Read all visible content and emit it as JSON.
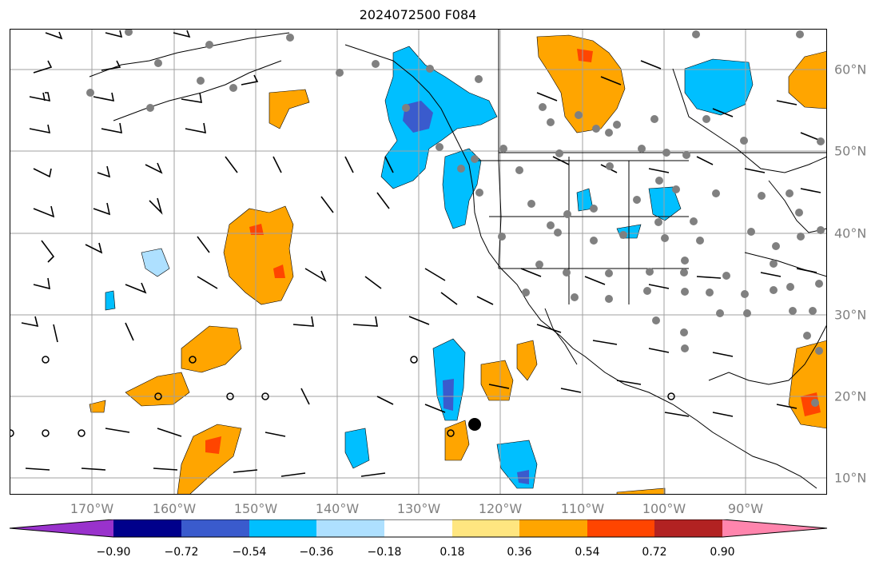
{
  "title": "2024072500 F084",
  "lon_labels": [
    "170°W",
    "160°W",
    "150°W",
    "140°W",
    "130°W",
    "120°W",
    "110°W",
    "100°W",
    "90°W"
  ],
  "lat_labels": [
    "60°N",
    "50°N",
    "40°N",
    "30°N",
    "20°N",
    "10°N"
  ],
  "colorbar": {
    "colors": [
      "#9932cc",
      "#00008b",
      "#3a5bcd",
      "#00bfff",
      "#aee0ff",
      "#ffffff",
      "#ffe680",
      "#ffa500",
      "#ff4500",
      "#b22222",
      "#ff85ad"
    ],
    "ticks": [
      "−0.90",
      "−0.72",
      "−0.54",
      "−0.36",
      "−0.18",
      "0.18",
      "0.36",
      "0.54",
      "0.72",
      "0.90"
    ]
  },
  "colors": {
    "station": "#808080",
    "grid": "#a0a0a0",
    "coast": "#000000"
  }
}
